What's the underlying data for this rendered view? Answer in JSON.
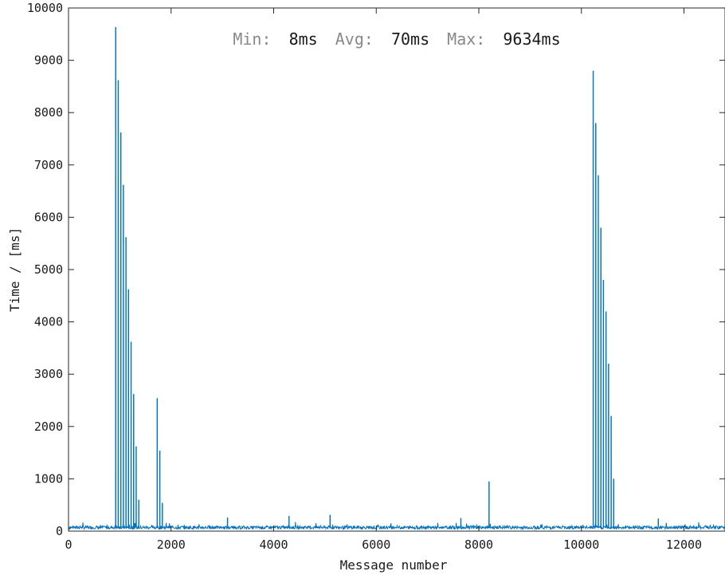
{
  "chart_data": {
    "type": "line",
    "xlabel": "Message number",
    "ylabel": "Time / [ms]",
    "xlim": [
      0,
      12800
    ],
    "ylim": [
      0,
      10000
    ],
    "xticks": [
      0,
      2000,
      4000,
      6000,
      8000,
      10000,
      12000
    ],
    "yticks": [
      0,
      1000,
      2000,
      3000,
      4000,
      5000,
      6000,
      7000,
      8000,
      9000,
      10000
    ],
    "grid": false,
    "line_color": "#0072BD",
    "baseline_ms": 70,
    "stats": {
      "min_label": "Min:",
      "min_value": "8ms",
      "avg_label": "Avg:",
      "avg_value": "70ms",
      "max_label": "Max:",
      "max_value": "9634ms"
    },
    "spikes": [
      {
        "x": 920,
        "y": 9634
      },
      {
        "x": 970,
        "y": 8620
      },
      {
        "x": 1020,
        "y": 7620
      },
      {
        "x": 1070,
        "y": 6620
      },
      {
        "x": 1120,
        "y": 5620
      },
      {
        "x": 1170,
        "y": 4620
      },
      {
        "x": 1220,
        "y": 3620
      },
      {
        "x": 1270,
        "y": 2620
      },
      {
        "x": 1320,
        "y": 1620
      },
      {
        "x": 1370,
        "y": 600
      },
      {
        "x": 1730,
        "y": 2540
      },
      {
        "x": 1780,
        "y": 1540
      },
      {
        "x": 1830,
        "y": 540
      },
      {
        "x": 3100,
        "y": 260
      },
      {
        "x": 4300,
        "y": 290
      },
      {
        "x": 5100,
        "y": 310
      },
      {
        "x": 7650,
        "y": 250
      },
      {
        "x": 8200,
        "y": 950
      },
      {
        "x": 10230,
        "y": 8800
      },
      {
        "x": 10280,
        "y": 7800
      },
      {
        "x": 10330,
        "y": 6800
      },
      {
        "x": 10380,
        "y": 5800
      },
      {
        "x": 10430,
        "y": 4800
      },
      {
        "x": 10480,
        "y": 4200
      },
      {
        "x": 10530,
        "y": 3200
      },
      {
        "x": 10580,
        "y": 2200
      },
      {
        "x": 10630,
        "y": 1000
      },
      {
        "x": 11500,
        "y": 240
      }
    ]
  }
}
